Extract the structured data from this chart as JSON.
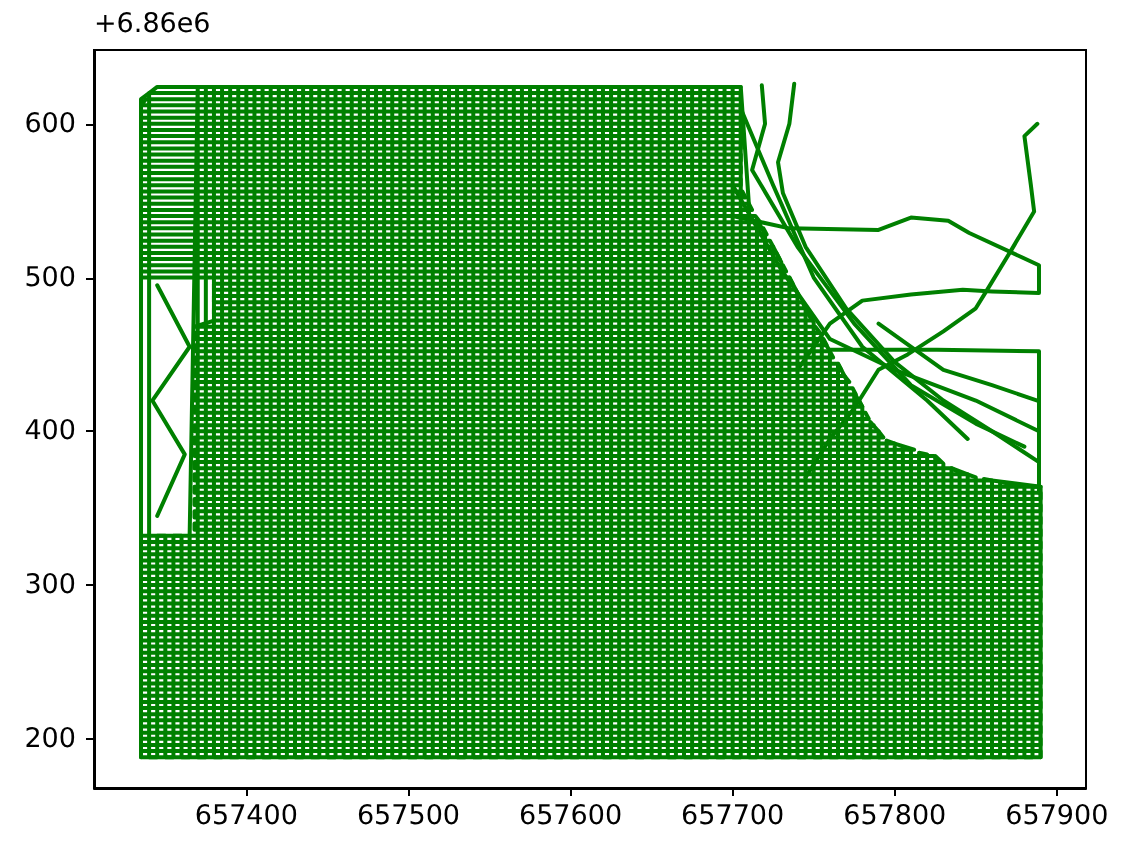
{
  "chart_data": {
    "type": "line",
    "marker": "none",
    "annotations": [
      "+6.86e6"
    ],
    "xlim": [
      657306,
      657918
    ],
    "xticks": [
      657400,
      657500,
      657600,
      657700,
      657800,
      657900
    ],
    "ylim": [
      168,
      648
    ],
    "yticks": [
      200,
      300,
      400,
      500,
      600
    ],
    "series": [
      {
        "color": "#008000",
        "x": [
          657335,
          657890,
          657890,
          657335,
          657335,
          657890,
          657890,
          657335,
          657335,
          657890,
          657890,
          657335,
          657335,
          657890,
          657890,
          657335,
          657335,
          657890,
          657890,
          657335,
          657335,
          657890,
          657890,
          657335,
          657335,
          657890,
          657890,
          657335,
          657335,
          657890,
          657890,
          657335,
          657335,
          657890,
          657890,
          657335,
          657335,
          657890,
          657890,
          657335,
          657335,
          657890,
          657890,
          657335,
          657335,
          657890,
          657890,
          657335,
          657335,
          657890,
          657890,
          657335,
          657335,
          657890,
          657890,
          657335,
          657335,
          657890,
          657890,
          657335,
          657335,
          657890,
          657890,
          657335,
          657335,
          657890,
          657890,
          657335,
          657335,
          657890,
          657890,
          657335,
          657335,
          657890,
          657890,
          657368,
          657368,
          657890,
          657890,
          657368,
          657368,
          657890,
          657890,
          657368,
          657368,
          657890,
          657890,
          657368,
          657368,
          657890,
          657860,
          657368,
          657368,
          657845,
          657835,
          657368,
          657368,
          657828,
          657824,
          657368,
          657368,
          657812,
          657800,
          657368,
          657368,
          657793,
          657790,
          657368,
          657368,
          657787
        ],
        "values": [
          188,
          188,
          192,
          192,
          196,
          196,
          200,
          200,
          204,
          204,
          208,
          208,
          212,
          212,
          216,
          216,
          220,
          220,
          224,
          224,
          228,
          228,
          232,
          232,
          236,
          236,
          240,
          240,
          244,
          244,
          248,
          248,
          252,
          252,
          256,
          256,
          260,
          260,
          264,
          264,
          268,
          268,
          272,
          272,
          276,
          276,
          280,
          280,
          284,
          284,
          288,
          288,
          292,
          292,
          296,
          296,
          300,
          300,
          304,
          304,
          308,
          308,
          312,
          312,
          316,
          316,
          320,
          320,
          324,
          324,
          328,
          328,
          332,
          332,
          336,
          336,
          340,
          340,
          344,
          344,
          348,
          348,
          352,
          352,
          356,
          356,
          360,
          360,
          364,
          364,
          368,
          368,
          372,
          372,
          376,
          376,
          380,
          380,
          384,
          384,
          388,
          388,
          392,
          392,
          396,
          396,
          400,
          400,
          404,
          404
        ]
      },
      {
        "color": "#008000",
        "x": [
          657368,
          657784,
          657782,
          657368,
          657368,
          657780,
          657778,
          657368,
          657368,
          657776,
          657774,
          657368,
          657368,
          657772,
          657769,
          657368,
          657368,
          657767,
          657765,
          657368,
          657368,
          657762,
          657760,
          657368,
          657368,
          657758,
          657756,
          657368,
          657368,
          657754,
          657751,
          657368,
          657380,
          657749,
          657747,
          657380,
          657380,
          657745,
          657743,
          657380,
          657380,
          657741,
          657739,
          657380,
          657380,
          657737,
          657735,
          657335,
          657335,
          657733,
          657731,
          657335,
          657335,
          657729,
          657727,
          657335,
          657335,
          657725,
          657723,
          657335,
          657335,
          657721,
          657719,
          657335,
          657335,
          657717,
          657714,
          657335,
          657335,
          657712,
          657710,
          657335,
          657335,
          657708,
          657706,
          657335,
          657335,
          657705,
          657705,
          657335,
          657335,
          657705,
          657705,
          657335,
          657335,
          657705,
          657705,
          657335,
          657335,
          657705,
          657705,
          657335,
          657335,
          657705,
          657705,
          657335,
          657335,
          657705,
          657705,
          657335,
          657335,
          657705,
          657705,
          657335,
          657338,
          657705,
          657705,
          657340,
          657345,
          657705
        ],
        "values": [
          408,
          408,
          412,
          412,
          416,
          416,
          420,
          420,
          424,
          424,
          428,
          428,
          432,
          432,
          436,
          436,
          440,
          440,
          444,
          444,
          448,
          448,
          452,
          452,
          456,
          456,
          460,
          460,
          464,
          464,
          468,
          468,
          472,
          472,
          476,
          476,
          480,
          480,
          484,
          484,
          488,
          488,
          492,
          492,
          496,
          496,
          500,
          500,
          504,
          504,
          508,
          508,
          512,
          512,
          516,
          516,
          520,
          520,
          524,
          524,
          528,
          528,
          532,
          532,
          536,
          536,
          540,
          540,
          544,
          544,
          548,
          548,
          552,
          552,
          556,
          556,
          560,
          560,
          564,
          564,
          568,
          568,
          572,
          572,
          576,
          576,
          580,
          580,
          584,
          584,
          588,
          588,
          592,
          592,
          596,
          596,
          600,
          600,
          604,
          604,
          608,
          608,
          612,
          612,
          616,
          616,
          620,
          620,
          624,
          624
        ]
      },
      {
        "color": "#008000",
        "x": [
          657335,
          657335,
          657340,
          657340,
          657345,
          657345,
          657350,
          657350,
          657355,
          657355,
          657360,
          657360,
          657365,
          657365,
          657370,
          657370,
          657375,
          657375,
          657380,
          657380,
          657385,
          657385,
          657390,
          657390,
          657395,
          657395,
          657400,
          657400,
          657405,
          657405,
          657410,
          657410,
          657415,
          657415,
          657420,
          657420,
          657425,
          657425,
          657430,
          657430,
          657435,
          657435,
          657440,
          657440,
          657445,
          657445,
          657450,
          657450,
          657455,
          657455,
          657460,
          657460,
          657465,
          657465,
          657470,
          657470,
          657475,
          657475,
          657480,
          657480,
          657485,
          657485,
          657490,
          657490,
          657495,
          657495,
          657500,
          657500,
          657505,
          657505,
          657510,
          657510,
          657515,
          657515,
          657520,
          657520,
          657525,
          657525,
          657530,
          657530,
          657535,
          657535,
          657540,
          657540,
          657545,
          657545,
          657550,
          657550,
          657555,
          657555,
          657560,
          657560,
          657565,
          657565,
          657570,
          657570,
          657575,
          657575,
          657580,
          657580,
          657585,
          657585,
          657590,
          657590,
          657595,
          657595,
          657600,
          657600,
          657605,
          657605,
          657610,
          657610
        ],
        "values": [
          188,
          616,
          620,
          188,
          188,
          332,
          332,
          188,
          188,
          332,
          332,
          188,
          188,
          332,
          624,
          188,
          188,
          624,
          624,
          188,
          188,
          624,
          624,
          188,
          188,
          624,
          624,
          188,
          188,
          624,
          624,
          188,
          188,
          624,
          624,
          188,
          188,
          624,
          624,
          188,
          188,
          624,
          624,
          188,
          188,
          624,
          624,
          188,
          188,
          624,
          624,
          188,
          188,
          624,
          624,
          188,
          188,
          624,
          624,
          188,
          188,
          624,
          624,
          188,
          188,
          624,
          624,
          188,
          188,
          624,
          624,
          188,
          188,
          624,
          624,
          188,
          188,
          624,
          624,
          188,
          188,
          624,
          624,
          188,
          188,
          624,
          624,
          188,
          188,
          624,
          624,
          188,
          188,
          624,
          624,
          188,
          188,
          624,
          624,
          188,
          188,
          624,
          624,
          188,
          188,
          624,
          624,
          188,
          188,
          624,
          624,
          188
        ]
      },
      {
        "color": "#008000",
        "x": [
          657615,
          657615,
          657620,
          657620,
          657625,
          657625,
          657630,
          657630,
          657635,
          657635,
          657640,
          657640,
          657645,
          657645,
          657650,
          657650,
          657655,
          657655,
          657660,
          657660,
          657665,
          657665,
          657670,
          657670,
          657675,
          657675,
          657680,
          657680,
          657685,
          657685,
          657690,
          657690,
          657695,
          657695,
          657700,
          657700,
          657705,
          657705,
          657710,
          657710,
          657715,
          657715,
          657720,
          657720,
          657725,
          657725,
          657730,
          657730,
          657735,
          657735,
          657740,
          657740,
          657745,
          657745,
          657750,
          657750,
          657755,
          657755,
          657760,
          657760,
          657765,
          657765,
          657770,
          657770,
          657775,
          657775,
          657780,
          657780,
          657785,
          657785,
          657790,
          657790,
          657795,
          657795,
          657800,
          657800,
          657805,
          657805,
          657810,
          657810,
          657815,
          657815,
          657820,
          657820,
          657825,
          657825,
          657830,
          657830,
          657835,
          657835,
          657840,
          657840,
          657845,
          657845,
          657850,
          657850,
          657855,
          657855,
          657860,
          657860,
          657865,
          657865,
          657870,
          657870,
          657875,
          657875,
          657880,
          657880,
          657885,
          657885,
          657890,
          657890
        ],
        "values": [
          188,
          624,
          624,
          188,
          188,
          624,
          624,
          188,
          188,
          624,
          624,
          188,
          188,
          624,
          624,
          188,
          188,
          624,
          624,
          188,
          188,
          624,
          624,
          188,
          188,
          624,
          624,
          188,
          188,
          624,
          624,
          188,
          188,
          624,
          624,
          188,
          188,
          624,
          548,
          188,
          188,
          538,
          528,
          188,
          188,
          520,
          510,
          188,
          188,
          500,
          490,
          188,
          188,
          480,
          471,
          188,
          188,
          461,
          452,
          188,
          188,
          444,
          434,
          188,
          188,
          425,
          416,
          188,
          188,
          406,
          400,
          188,
          188,
          394,
          392,
          188,
          188,
          389,
          388,
          188,
          188,
          386,
          385,
          188,
          188,
          384,
          379,
          188,
          188,
          376,
          373,
          188,
          188,
          372,
          370,
          188,
          188,
          369,
          368,
          188,
          188,
          367,
          366,
          188,
          188,
          365,
          365,
          188,
          188,
          364,
          364,
          188
        ]
      },
      {
        "color": "#008000",
        "x": [
          657888,
          657880,
          657884,
          657886,
          657872,
          657857,
          657850,
          657830,
          657808,
          657790,
          657775,
          657760,
          657745
        ],
        "values": [
          600,
          592,
          560,
          543,
          518,
          492,
          480,
          465,
          450,
          440,
          415,
          395,
          370
        ]
      },
      {
        "color": "#008000",
        "x": [
          657700,
          657735,
          657790,
          657810,
          657833,
          657846,
          657889,
          657889,
          657860,
          657842,
          657810,
          657780,
          657760,
          657740
        ],
        "values": [
          540,
          532,
          531,
          539,
          537,
          529,
          508,
          490,
          491,
          492,
          489,
          485,
          470,
          440
        ]
      },
      {
        "color": "#008000",
        "x": [
          657760,
          657826,
          657889,
          657889,
          657889
        ],
        "values": [
          453,
          453,
          452,
          394,
          360
        ]
      },
      {
        "color": "#008000",
        "x": [
          657738,
          657735,
          657728,
          657731,
          657745,
          657770,
          657800,
          657830,
          657860,
          657889
        ],
        "values": [
          626,
          600,
          575,
          555,
          520,
          480,
          445,
          420,
          400,
          380
        ]
      },
      {
        "color": "#008000",
        "x": [
          657718,
          657720,
          657712,
          657740,
          657775,
          657810,
          657850,
          657880
        ],
        "values": [
          625,
          600,
          570,
          520,
          470,
          430,
          405,
          390
        ]
      },
      {
        "color": "#008000",
        "x": [
          657700,
          657730,
          657760,
          657800,
          657850,
          657889
        ],
        "values": [
          560,
          505,
          460,
          440,
          420,
          400
        ]
      },
      {
        "color": "#008000",
        "x": [
          657790,
          657830,
          657860,
          657888
        ],
        "values": [
          470,
          440,
          430,
          420
        ]
      },
      {
        "color": "#008000",
        "x": [
          657705,
          657725,
          657750,
          657780,
          657820,
          657845
        ],
        "values": [
          610,
          560,
          500,
          455,
          420,
          395
        ]
      },
      {
        "color": "#008000",
        "x": [
          657345,
          657365,
          657342,
          657362,
          657345
        ],
        "values": [
          495,
          455,
          420,
          385,
          345
        ]
      }
    ]
  }
}
